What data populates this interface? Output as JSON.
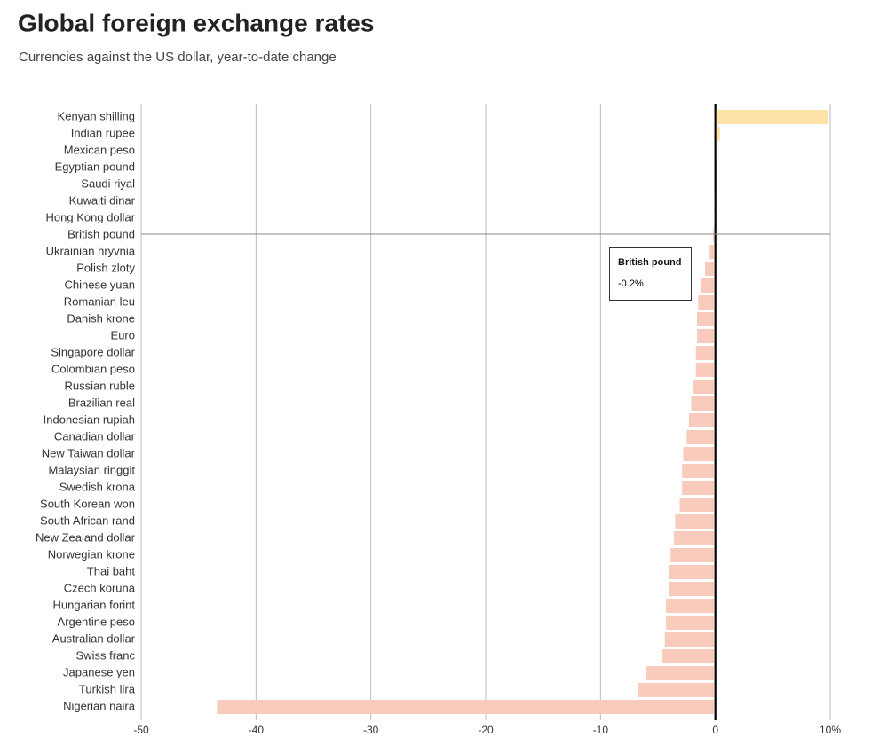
{
  "chart_data": {
    "type": "hbar",
    "title": "Global foreign exchange rates",
    "subtitle": "Currencies against the US dollar, year-to-date change",
    "categories": [
      "Kenyan shilling",
      "Indian rupee",
      "Mexican peso",
      "Egyptian pound",
      "Saudi riyal",
      "Kuwaiti dinar",
      "Hong Kong dollar",
      "British pound",
      "Ukrainian hryvnia",
      "Polish zloty",
      "Chinese yuan",
      "Romanian leu",
      "Danish krone",
      "Euro",
      "Singapore dollar",
      "Colombian peso",
      "Russian ruble",
      "Brazilian real",
      "Indonesian rupiah",
      "Canadian dollar",
      "New Taiwan dollar",
      "Malaysian ringgit",
      "Swedish krona",
      "South Korean won",
      "South African rand",
      "New Zealand dollar",
      "Norwegian krone",
      "Thai baht",
      "Czech koruna",
      "Hungarian forint",
      "Argentine peso",
      "Australian dollar",
      "Swiss franc",
      "Japanese yen",
      "Turkish lira",
      "Nigerian naira"
    ],
    "values": [
      9.8,
      0.4,
      0.1,
      0,
      0,
      -0.1,
      -0.1,
      -0.2,
      -0.5,
      -0.9,
      -1.3,
      -1.5,
      -1.6,
      -1.6,
      -1.7,
      -1.7,
      -1.9,
      -2.1,
      -2.3,
      -2.5,
      -2.8,
      -2.9,
      -2.9,
      -3.1,
      -3.5,
      -3.6,
      -3.9,
      -4.0,
      -4.0,
      -4.3,
      -4.3,
      -4.4,
      -4.6,
      -6.0,
      -6.7,
      -43.4
    ],
    "positive_color": "#fde3a7",
    "negative_color": "#f8cbbd",
    "xlim": [
      -50,
      10
    ],
    "xticks": [
      -50,
      -40,
      -30,
      -20,
      -10,
      0,
      {
        "value": 10,
        "label": "10%"
      }
    ],
    "grid": true,
    "tooltip": {
      "title": "British pound",
      "text": "-0.2%"
    }
  }
}
